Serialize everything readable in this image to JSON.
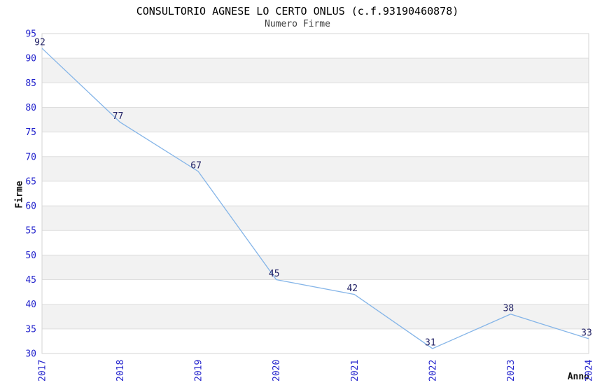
{
  "chart_data": {
    "type": "line",
    "title": "CONSULTORIO AGNESE LO CERTO ONLUS (c.f.93190460878)",
    "subtitle": "Numero Firme",
    "xlabel": "Anno",
    "ylabel": "Firme",
    "x": [
      "2017",
      "2018",
      "2019",
      "2020",
      "2021",
      "2022",
      "2023",
      "2024"
    ],
    "values": [
      92,
      77,
      67,
      45,
      42,
      31,
      38,
      33
    ],
    "ylim": [
      30,
      95
    ],
    "ytick_step": 5,
    "yticks": [
      30,
      35,
      40,
      45,
      50,
      55,
      60,
      65,
      70,
      75,
      80,
      85,
      90,
      95
    ],
    "grid": "alternating-horizontal-bands",
    "legend_position": "none",
    "colors": {
      "line": "#85b5e8",
      "tick_label": "#2222cc",
      "data_label": "#222266",
      "band_fill": "#f2f2f2",
      "grid_line": "#dedede",
      "plot_border": "#d4d4d4",
      "title": "#000000",
      "subtitle": "#3d3d3d",
      "axis_label": "#111111",
      "background": "#ffffff"
    }
  }
}
